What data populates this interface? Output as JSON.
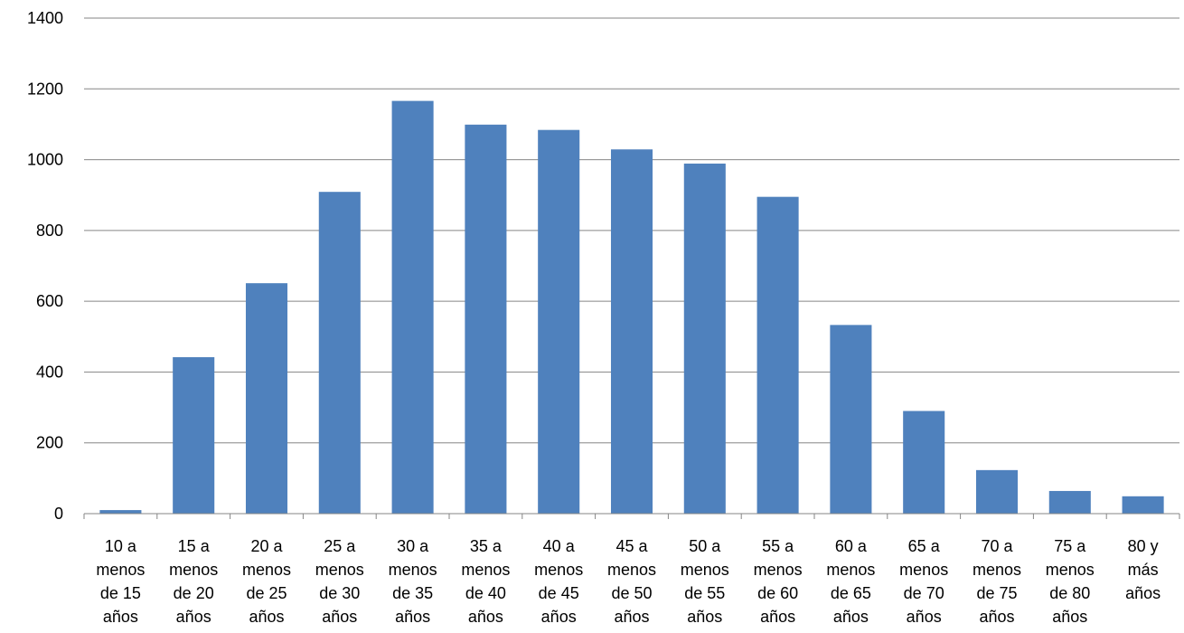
{
  "chart_data": {
    "type": "bar",
    "title": "",
    "xlabel": "",
    "ylabel": "",
    "ylim": [
      0,
      1400
    ],
    "yticks": [
      0,
      200,
      400,
      600,
      800,
      1000,
      1200,
      1400
    ],
    "grid": true,
    "legend": "none",
    "bar_color": "#4f81bd",
    "categories": [
      [
        "10 a",
        "menos",
        "de 15",
        "años"
      ],
      [
        "15 a",
        "menos",
        "de 20",
        "años"
      ],
      [
        "20 a",
        "menos",
        "de 25",
        "años"
      ],
      [
        "25 a",
        "menos",
        "de 30",
        "años"
      ],
      [
        "30 a",
        "menos",
        "de 35",
        "años"
      ],
      [
        "35 a",
        "menos",
        "de 40",
        "años"
      ],
      [
        "40 a",
        "menos",
        "de 45",
        "años"
      ],
      [
        "45 a",
        "menos",
        "de 50",
        "años"
      ],
      [
        "50 a",
        "menos",
        "de 55",
        "años"
      ],
      [
        "55 a",
        "menos",
        "de 60",
        "años"
      ],
      [
        "60 a",
        "menos",
        "de 65",
        "años"
      ],
      [
        "65 a",
        "menos",
        "de 70",
        "años"
      ],
      [
        "70 a",
        "menos",
        "de 75",
        "años"
      ],
      [
        "75 a",
        "menos",
        "de 80",
        "años"
      ],
      [
        "80 y",
        "más",
        "años"
      ]
    ],
    "values": [
      10,
      442,
      651,
      909,
      1166,
      1099,
      1084,
      1029,
      989,
      895,
      533,
      290,
      123,
      64,
      49
    ]
  }
}
